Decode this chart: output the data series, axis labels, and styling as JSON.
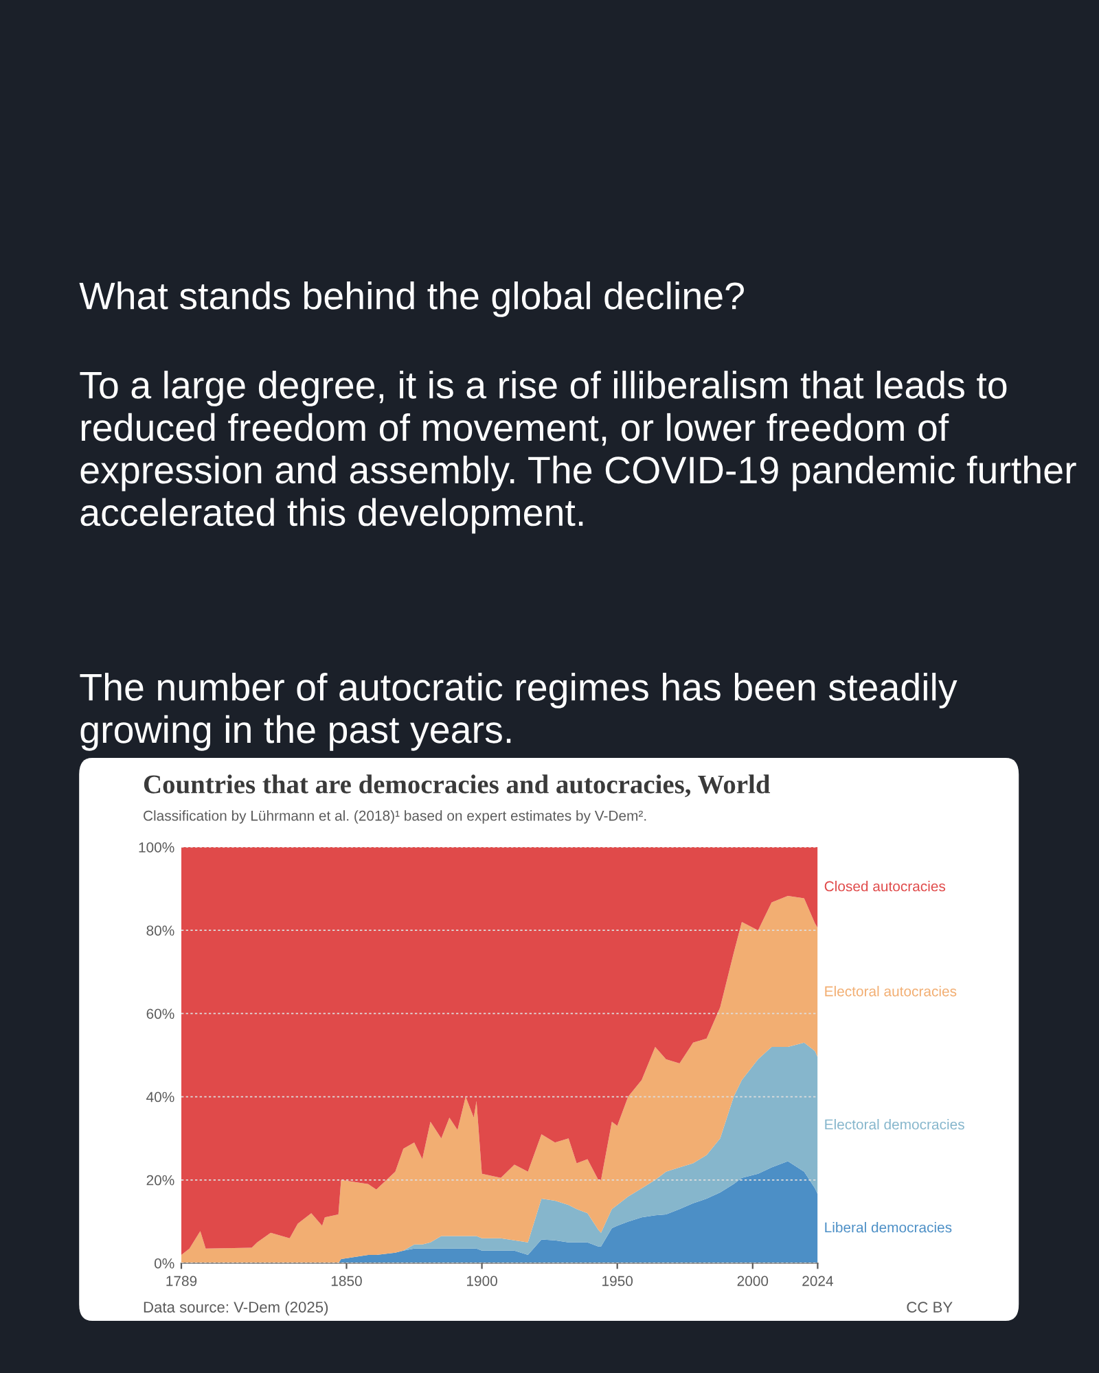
{
  "chart_data": {
    "type": "area",
    "stacked": true,
    "title": "Countries that are democracies and autocracies, World",
    "subtitle": "Classification by Lührmann et al. (2018)¹ based on expert estimates by V-Dem².",
    "x": [
      1789,
      1792,
      1796,
      1798,
      1815,
      1817,
      1822,
      1829,
      1832,
      1837,
      1841,
      1842,
      1847,
      1848,
      1858,
      1861,
      1868,
      1871,
      1875,
      1878,
      1881,
      1885,
      1888,
      1891,
      1894,
      1897,
      1898,
      1900,
      1907,
      1912,
      1917,
      1922,
      1927,
      1932,
      1935,
      1939,
      1943,
      1944,
      1948,
      1950,
      1954,
      1959,
      1964,
      1968,
      1973,
      1978,
      1983,
      1988,
      1993,
      1996,
      2002,
      2007,
      2013,
      2019,
      2023,
      2024
    ],
    "series": [
      {
        "name": "Liberal democracies",
        "color": "#4c8fc6",
        "values": [
          0,
          0,
          0,
          0,
          0,
          0,
          0,
          0,
          0,
          0,
          0,
          0,
          0,
          1,
          2,
          2,
          2.5,
          3,
          3.5,
          3.5,
          3.5,
          3.5,
          3.5,
          3.5,
          3.5,
          3.5,
          3.5,
          3,
          3,
          3,
          2,
          5.7,
          5.5,
          5,
          5,
          5,
          4,
          4,
          8.4,
          9,
          10,
          11,
          11.5,
          11.7,
          13,
          14.4,
          15.5,
          17,
          19,
          20.5,
          21.5,
          23,
          24.5,
          22,
          18,
          16.6
        ]
      },
      {
        "name": "Electoral democracies",
        "color": "#86b6cc",
        "values": [
          0,
          0,
          0,
          0,
          0,
          0,
          0,
          0,
          0,
          0,
          0,
          0,
          0,
          0,
          0,
          0,
          0,
          0,
          1,
          1,
          1.5,
          3,
          3,
          3,
          3,
          3,
          3,
          3,
          3,
          2.5,
          3,
          9.8,
          9.5,
          9,
          8,
          7,
          4,
          3.3,
          4.6,
          5,
          6,
          7,
          8.5,
          10.3,
          10,
          9.6,
          10.5,
          13,
          21,
          23.5,
          27.5,
          29,
          27.5,
          31,
          33,
          32.9
        ]
      },
      {
        "name": "Electoral autocracies",
        "color": "#f2ae72",
        "values": [
          2,
          3.5,
          7.7,
          3.5,
          3.7,
          5,
          7.3,
          6,
          9.5,
          12,
          9,
          11,
          11.7,
          19,
          17,
          15.7,
          19.5,
          24.5,
          24.5,
          20.5,
          29,
          23.5,
          28.5,
          25.5,
          33.5,
          28.5,
          32.5,
          15.5,
          14.5,
          18.2,
          17,
          15.5,
          14,
          16,
          11,
          13,
          12,
          12.7,
          21,
          19,
          24,
          26,
          32,
          27,
          25,
          29,
          28,
          31.5,
          34.6,
          38,
          31,
          34.7,
          36.3,
          34.7,
          30.7,
          31.1
        ]
      },
      {
        "name": "Closed autocracies",
        "color": "#e04a4a",
        "values": [
          98,
          96.5,
          92.3,
          96.5,
          96.3,
          95,
          92.7,
          94,
          90.5,
          88,
          91,
          89,
          88.3,
          80,
          81,
          82.3,
          78,
          72.5,
          71,
          75,
          66,
          70,
          65,
          68,
          60,
          65,
          61,
          78.5,
          79.5,
          76.3,
          78,
          69,
          71,
          70,
          76,
          75,
          80,
          80,
          66,
          67,
          60,
          56,
          48,
          51,
          52,
          47,
          46,
          38.5,
          25.4,
          18,
          20,
          13.3,
          11.7,
          12.3,
          18.3,
          19.4
        ]
      }
    ],
    "xlim": [
      1789,
      2024
    ],
    "xticks": [
      1789,
      1850,
      1900,
      1950,
      2000,
      2024
    ],
    "ylim": [
      0,
      100
    ],
    "yticks": [
      {
        "value": 0,
        "label": "0%"
      },
      {
        "value": 20,
        "label": "20%"
      },
      {
        "value": 40,
        "label": "40%"
      },
      {
        "value": 60,
        "label": "60%"
      },
      {
        "value": 80,
        "label": "80%"
      },
      {
        "value": 100,
        "label": "100%"
      }
    ],
    "grid": "y",
    "annotations": [
      "What stands behind the global decline?",
      "To a large degree, it is a rise of illiberalism that leads to reduced freedom of movement, or lower freedom of expression and assembly. The COVID-19 pandemic further accelerated this development.",
      "The number of autocratic regimes has been steadily growing in the past years.",
      "Data source: V-Dem (2025)",
      "CC BY"
    ]
  }
}
